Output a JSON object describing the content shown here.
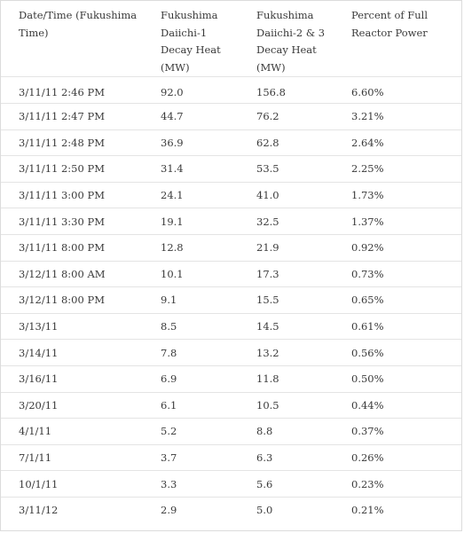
{
  "headers": [
    "Date/Time (Fukushima Time)",
    "Fukushima Daiichi-1 Decay Heat (MW)",
    "Fukushima Daiichi-2 & 3 Decay Heat (MW)",
    "Percent of Full Reactor Power"
  ],
  "rows": [
    {
      "time": "3/11/11 2:46 PM",
      "d1": "92.0",
      "d23": "156.8",
      "pct": "6.60%"
    },
    {
      "time": "3/11/11 2:47 PM",
      "d1": "44.7",
      "d23": "76.2",
      "pct": "3.21%"
    },
    {
      "time": "3/11/11 2:48 PM",
      "d1": "36.9",
      "d23": "62.8",
      "pct": "2.64%"
    },
    {
      "time": "3/11/11 2:50 PM",
      "d1": "31.4",
      "d23": "53.5",
      "pct": "2.25%"
    },
    {
      "time": "3/11/11 3:00 PM",
      "d1": "24.1",
      "d23": "41.0",
      "pct": "1.73%"
    },
    {
      "time": "3/11/11 3:30 PM",
      "d1": "19.1",
      "d23": "32.5",
      "pct": "1.37%"
    },
    {
      "time": "3/11/11 8:00 PM",
      "d1": "12.8",
      "d23": "21.9",
      "pct": "0.92%"
    },
    {
      "time": "3/12/11 8:00 AM",
      "d1": "10.1",
      "d23": "17.3",
      "pct": "0.73%"
    },
    {
      "time": "3/12/11 8:00 PM",
      "d1": "9.1",
      "d23": "15.5",
      "pct": "0.65%"
    },
    {
      "time": "3/13/11",
      "d1": "8.5",
      "d23": "14.5",
      "pct": "0.61%"
    },
    {
      "time": "3/14/11",
      "d1": "7.8",
      "d23": "13.2",
      "pct": "0.56%"
    },
    {
      "time": "3/16/11",
      "d1": "6.9",
      "d23": "11.8",
      "pct": "0.50%"
    },
    {
      "time": "3/20/11",
      "d1": "6.1",
      "d23": "10.5",
      "pct": "0.44%"
    },
    {
      "time": "4/1/11",
      "d1": "5.2",
      "d23": "8.8",
      "pct": "0.37%"
    },
    {
      "time": "7/1/11",
      "d1": "3.7",
      "d23": "6.3",
      "pct": "0.26%"
    },
    {
      "time": "10/1/11",
      "d1": "3.3",
      "d23": "5.6",
      "pct": "0.23%"
    },
    {
      "time": "3/11/12",
      "d1": "2.9",
      "d23": "5.0",
      "pct": "0.21%"
    }
  ]
}
